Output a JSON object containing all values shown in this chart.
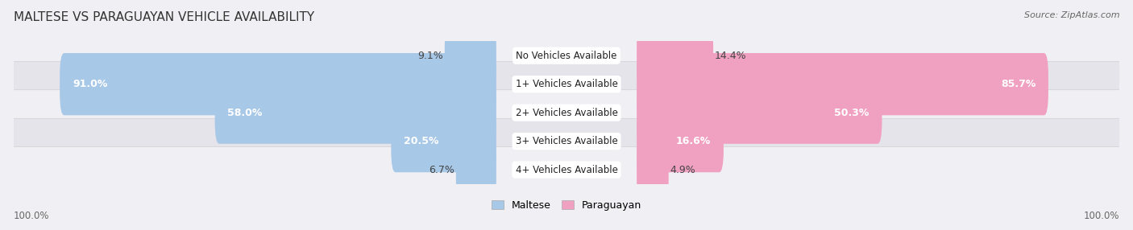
{
  "title": "MALTESE VS PARAGUAYAN VEHICLE AVAILABILITY",
  "source": "Source: ZipAtlas.com",
  "categories": [
    "No Vehicles Available",
    "1+ Vehicles Available",
    "2+ Vehicles Available",
    "3+ Vehicles Available",
    "4+ Vehicles Available"
  ],
  "maltese": [
    9.1,
    91.0,
    58.0,
    20.5,
    6.7
  ],
  "paraguayan": [
    14.4,
    85.7,
    50.3,
    16.6,
    4.9
  ],
  "maltese_color": "#a8c8e8",
  "paraguayan_color": "#f0a0c0",
  "maltese_color_dark": "#7baed4",
  "paraguayan_color_dark": "#e8609a",
  "row_bg_light": "#f0f0f4",
  "row_bg_dark": "#e4e4ea",
  "title_fontsize": 11,
  "source_fontsize": 8,
  "bar_label_fontsize": 9,
  "category_fontsize": 8.5,
  "legend_fontsize": 9,
  "footer_fontsize": 8.5,
  "max_value": 100.0,
  "inside_label_threshold": 15
}
